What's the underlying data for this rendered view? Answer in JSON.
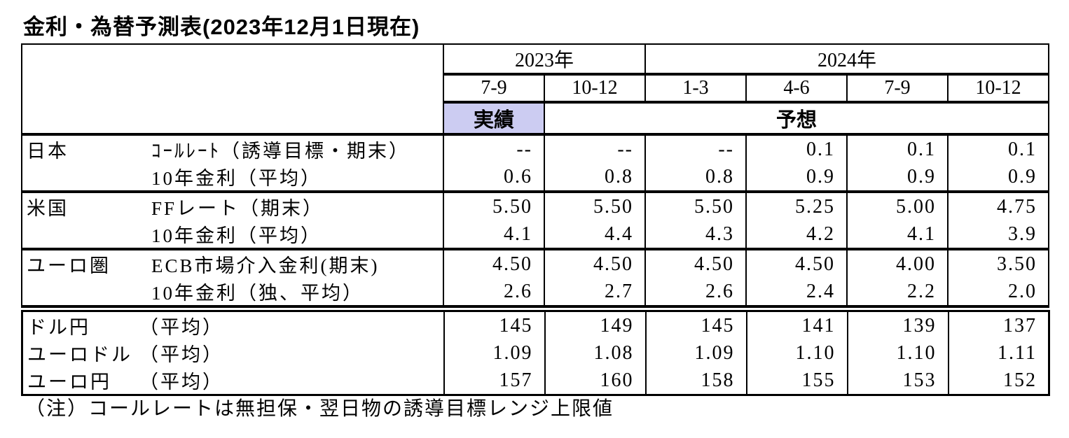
{
  "title": "金利・為替予測表(2023年12月1日現在)",
  "colors": {
    "actual_highlight": "#CCCCF2",
    "border": "#000000",
    "background": "#FFFFFF"
  },
  "header": {
    "year_2023": "2023年",
    "year_2024": "2024年",
    "quarters": [
      "7-9",
      "10-12",
      "1-3",
      "4-6",
      "7-9",
      "10-12"
    ],
    "actual_label": "実績",
    "forecast_label": "予想"
  },
  "rates_table": {
    "rows": [
      {
        "region": "日本",
        "indicator": "ｺｰﾙﾚｰﾄ（誘導目標・期末）",
        "values": [
          "--",
          "--",
          "--",
          "0.1",
          "0.1",
          "0.1"
        ]
      },
      {
        "region": "",
        "indicator": "10年金利（平均）",
        "values": [
          "0.6",
          "0.8",
          "0.8",
          "0.9",
          "0.9",
          "0.9"
        ]
      },
      {
        "region": "米国",
        "indicator": "FFレート（期末）",
        "values": [
          "5.50",
          "5.50",
          "5.50",
          "5.25",
          "5.00",
          "4.75"
        ]
      },
      {
        "region": "",
        "indicator": "10年金利（平均）",
        "values": [
          "4.1",
          "4.4",
          "4.3",
          "4.2",
          "4.1",
          "3.9"
        ]
      },
      {
        "region": "ユーロ圏",
        "indicator": "ECB市場介入金利(期末)",
        "values": [
          "4.50",
          "4.50",
          "4.50",
          "4.50",
          "4.00",
          "3.50"
        ]
      },
      {
        "region": "",
        "indicator": "10年金利（独、平均）",
        "values": [
          "2.6",
          "2.7",
          "2.6",
          "2.4",
          "2.2",
          "2.0"
        ]
      }
    ]
  },
  "fx_table": {
    "rows": [
      {
        "pair": "ドル円",
        "indicator": "（平均）",
        "values": [
          "145",
          "149",
          "145",
          "141",
          "139",
          "137"
        ]
      },
      {
        "pair": "ユーロドル",
        "indicator": "（平均）",
        "values": [
          "1.09",
          "1.08",
          "1.09",
          "1.10",
          "1.10",
          "1.11"
        ]
      },
      {
        "pair": "ユーロ円",
        "indicator": "（平均）",
        "values": [
          "157",
          "160",
          "158",
          "155",
          "153",
          "152"
        ]
      }
    ]
  },
  "note": "（注）コールレートは無担保・翌日物の誘導目標レンジ上限値"
}
